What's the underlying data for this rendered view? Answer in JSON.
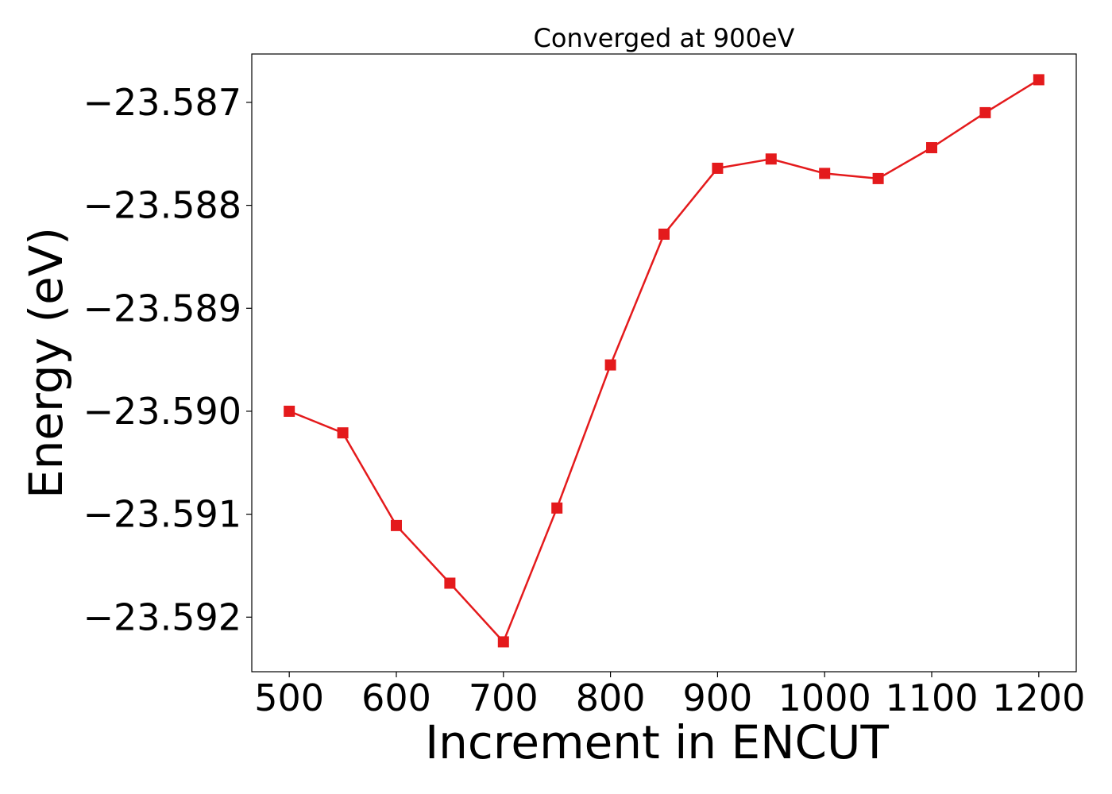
{
  "chart_data": {
    "type": "line",
    "title": "Converged at 900eV",
    "xlabel": "Increment in ENCUT",
    "ylabel": "Energy (eV)",
    "x": [
      500,
      550,
      600,
      650,
      700,
      750,
      800,
      850,
      900,
      950,
      1000,
      1050,
      1100,
      1150,
      1200
    ],
    "series": [
      {
        "values": [
          -23.59,
          -23.59021,
          -23.59111,
          -23.59167,
          -23.59224,
          -23.59094,
          -23.58955,
          -23.58828,
          -23.58764,
          -23.58755,
          -23.58769,
          -23.58774,
          -23.58744,
          -23.5871,
          -23.58678
        ],
        "color": "#e41a1c",
        "marker": "square"
      }
    ],
    "xlim": [
      465,
      1235
    ],
    "ylim": [
      -23.59253,
      -23.58653
    ],
    "xticks": [
      500,
      600,
      700,
      800,
      900,
      1000,
      1100,
      1200
    ],
    "xtick_labels": [
      "500",
      "600",
      "700",
      "800",
      "900",
      "1000",
      "1100",
      "1200"
    ],
    "yticks": [
      -23.587,
      -23.588,
      -23.589,
      -23.59,
      -23.591,
      -23.592
    ],
    "ytick_labels": [
      "−23.587",
      "−23.588",
      "−23.589",
      "−23.590",
      "−23.591",
      "−23.592"
    ],
    "grid": false,
    "legend": "none"
  }
}
